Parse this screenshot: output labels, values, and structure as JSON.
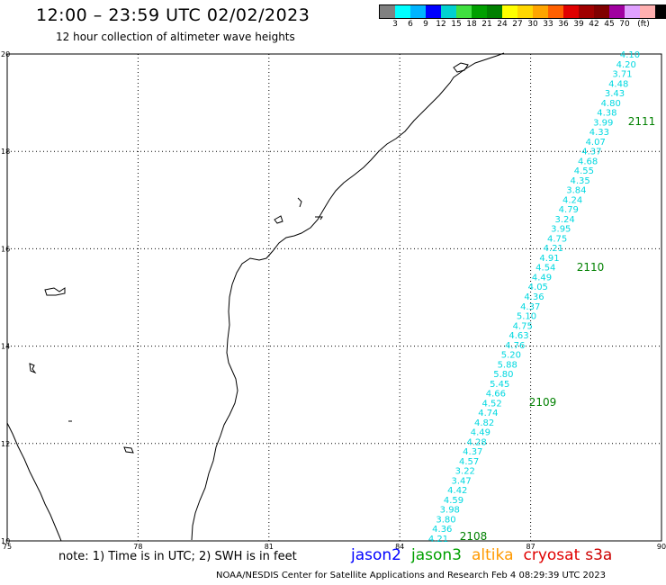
{
  "header": {
    "title": "12:00 – 23:59 UTC 02/02/2023",
    "subtitle": "12 hour collection of altimeter wave heights"
  },
  "legend": {
    "colors": [
      "#808080",
      "#00ffff",
      "#00b4ff",
      "#0000ff",
      "#00d0d0",
      "#40e040",
      "#00a000",
      "#008000",
      "#ffff00",
      "#ffd700",
      "#ffa500",
      "#ff6000",
      "#e00000",
      "#a00000",
      "#800000",
      "#a000a0",
      "#e0a0ff",
      "#ffb0b0",
      "#000000"
    ],
    "labels": [
      "3",
      "6",
      "9",
      "12",
      "15",
      "18",
      "21",
      "24",
      "27",
      "30",
      "33",
      "36",
      "39",
      "42",
      "45",
      "70",
      "(ft)"
    ]
  },
  "axes": {
    "x_ticks": [
      "75",
      "78",
      "81",
      "84",
      "87",
      "90"
    ],
    "y_ticks": [
      "20",
      "18",
      "16",
      "14",
      "12",
      "10"
    ]
  },
  "tracks": [
    {
      "id": "2111",
      "color": "#008000",
      "heights": [
        "4.10",
        "4.20",
        "3.71",
        "4.48",
        "3.43",
        "4.80",
        "4.38",
        "3.99",
        "4.33",
        "4.07",
        "4.37",
        "4.68",
        "4.55",
        "4.35",
        "3.84",
        "4.24",
        "4.79",
        "3.24",
        "3.95",
        "4.75",
        "4.21",
        "4.91",
        "4.54",
        "4.49",
        "4.05",
        "4.36",
        "4.37",
        "5.10",
        "4.75",
        "4.63",
        "4.76",
        "5.20",
        "5.88",
        "5.80",
        "5.45",
        "4.66",
        "4.52",
        "4.74",
        "4.82",
        "4.49",
        "4.28",
        "4.37",
        "4.57",
        "3.22",
        "3.47",
        "4.42",
        "4.59",
        "3.98",
        "3.80",
        "4.36",
        "4.21"
      ]
    },
    {
      "id": "2110",
      "color": "#008000"
    },
    {
      "id": "2109",
      "color": "#008000"
    },
    {
      "id": "2108",
      "color": "#008000"
    }
  ],
  "track_value_color": "#00d8e0",
  "footer": {
    "note": "note:  1) Time is in UTC;  2) SWH is in feet",
    "satellites": [
      {
        "name": "jason2",
        "color": "#0000ff"
      },
      {
        "name": "jason3",
        "color": "#00a000"
      },
      {
        "name": "altika",
        "color": "#ff9900"
      },
      {
        "name": "cryosat",
        "color": "#e00000"
      },
      {
        "name": "s3a",
        "color": "#cc0000"
      }
    ],
    "credit": "NOAA/NESDIS Center for Satellite Applications and Research   Feb  4 08:29:39 UTC 2023"
  }
}
